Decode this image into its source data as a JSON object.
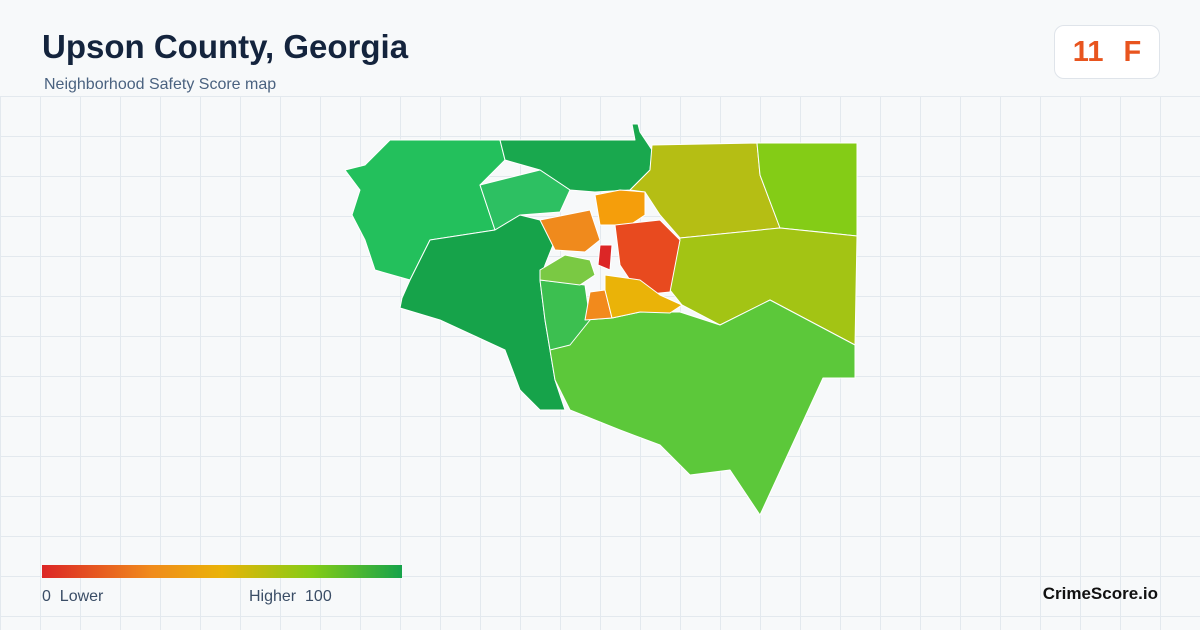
{
  "header": {
    "title": "Upson County, Georgia",
    "subtitle": "Neighborhood Safety Score map"
  },
  "score": {
    "value": 11,
    "grade": "F"
  },
  "legend": {
    "min": 0,
    "min_label": "Lower",
    "max_label": "Higher",
    "max": 100
  },
  "brand": "CrimeScore.io"
}
